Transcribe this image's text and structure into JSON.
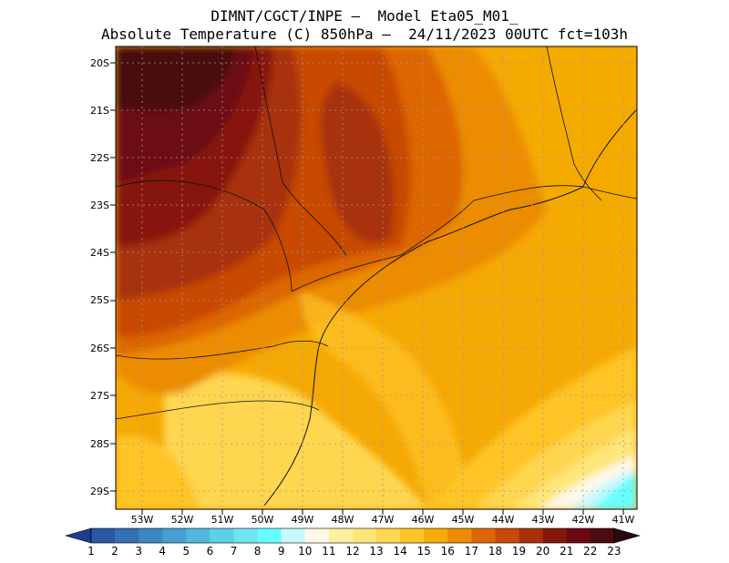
{
  "title": {
    "line1": "DIMNT/CGCT/INPE —  Model Eta05_M01_",
    "line2": "Absolute Temperature (C) 850hPa —  24/11/2023 00UTC fct=103h"
  },
  "map": {
    "lat_labels": [
      "20S",
      "21S",
      "22S",
      "23S",
      "24S",
      "25S",
      "26S",
      "27S",
      "28S",
      "29S"
    ],
    "lon_labels": [
      "53W",
      "52W",
      "51W",
      "50W",
      "49W",
      "48W",
      "47W",
      "46W",
      "45W",
      "44W",
      "43W",
      "42W",
      "41W"
    ]
  },
  "colorbar": {
    "labels": [
      "1",
      "2",
      "3",
      "4",
      "5",
      "6",
      "7",
      "8",
      "9",
      "10",
      "11",
      "12",
      "13",
      "14",
      "15",
      "16",
      "17",
      "18",
      "19",
      "20",
      "21",
      "22",
      "23"
    ],
    "colors": [
      "#1e3c8c",
      "#2a56a2",
      "#3470b4",
      "#3c88c2",
      "#44a0d0",
      "#50b8dc",
      "#5ed0e6",
      "#6ee6f0",
      "#66ffff",
      "#c8f8ff",
      "#fff8e8",
      "#fff0a0",
      "#ffe67a",
      "#ffd650",
      "#ffc428",
      "#f5aa05",
      "#ec8c02",
      "#dd6604",
      "#c84a06",
      "#a83008",
      "#86160a",
      "#6c0812",
      "#4a0c10",
      "#2a0a0a"
    ],
    "min_label": "1",
    "max_label": "23"
  }
}
